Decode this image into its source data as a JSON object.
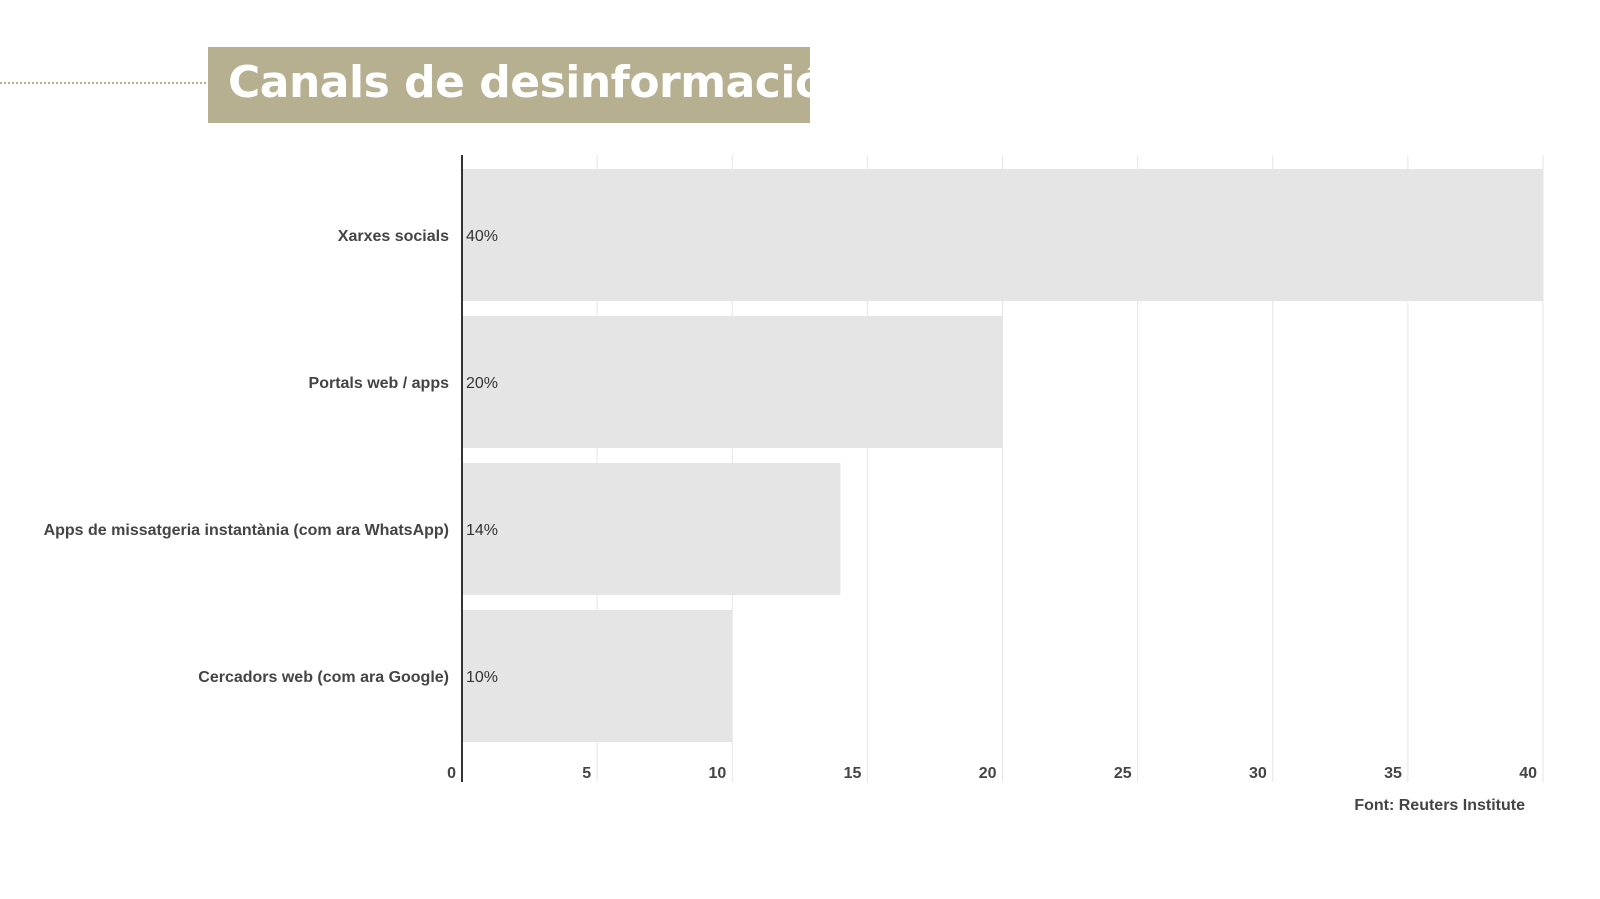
{
  "chart_data": {
    "type": "bar",
    "orientation": "horizontal",
    "title": "Canals de desinformació",
    "categories": [
      "Xarxes socials",
      "Portals web / apps",
      "Apps de missatgeria instantània (com ara WhatsApp)",
      "Cercadors web (com ara Google)"
    ],
    "values": [
      40,
      20,
      14,
      10
    ],
    "data_labels": [
      "40%",
      "20%",
      "14%",
      "10%"
    ],
    "xlim": [
      0,
      40
    ],
    "xticks": [
      "0",
      "5",
      "10",
      "15",
      "20",
      "25",
      "30",
      "35",
      "40"
    ],
    "grid": true,
    "source": "Font: Reuters Institute",
    "colors": {
      "bar": "#e5e5e5",
      "title_bg": "#b6af90",
      "grid": "#e6e6e6",
      "axis": "#333333"
    }
  }
}
